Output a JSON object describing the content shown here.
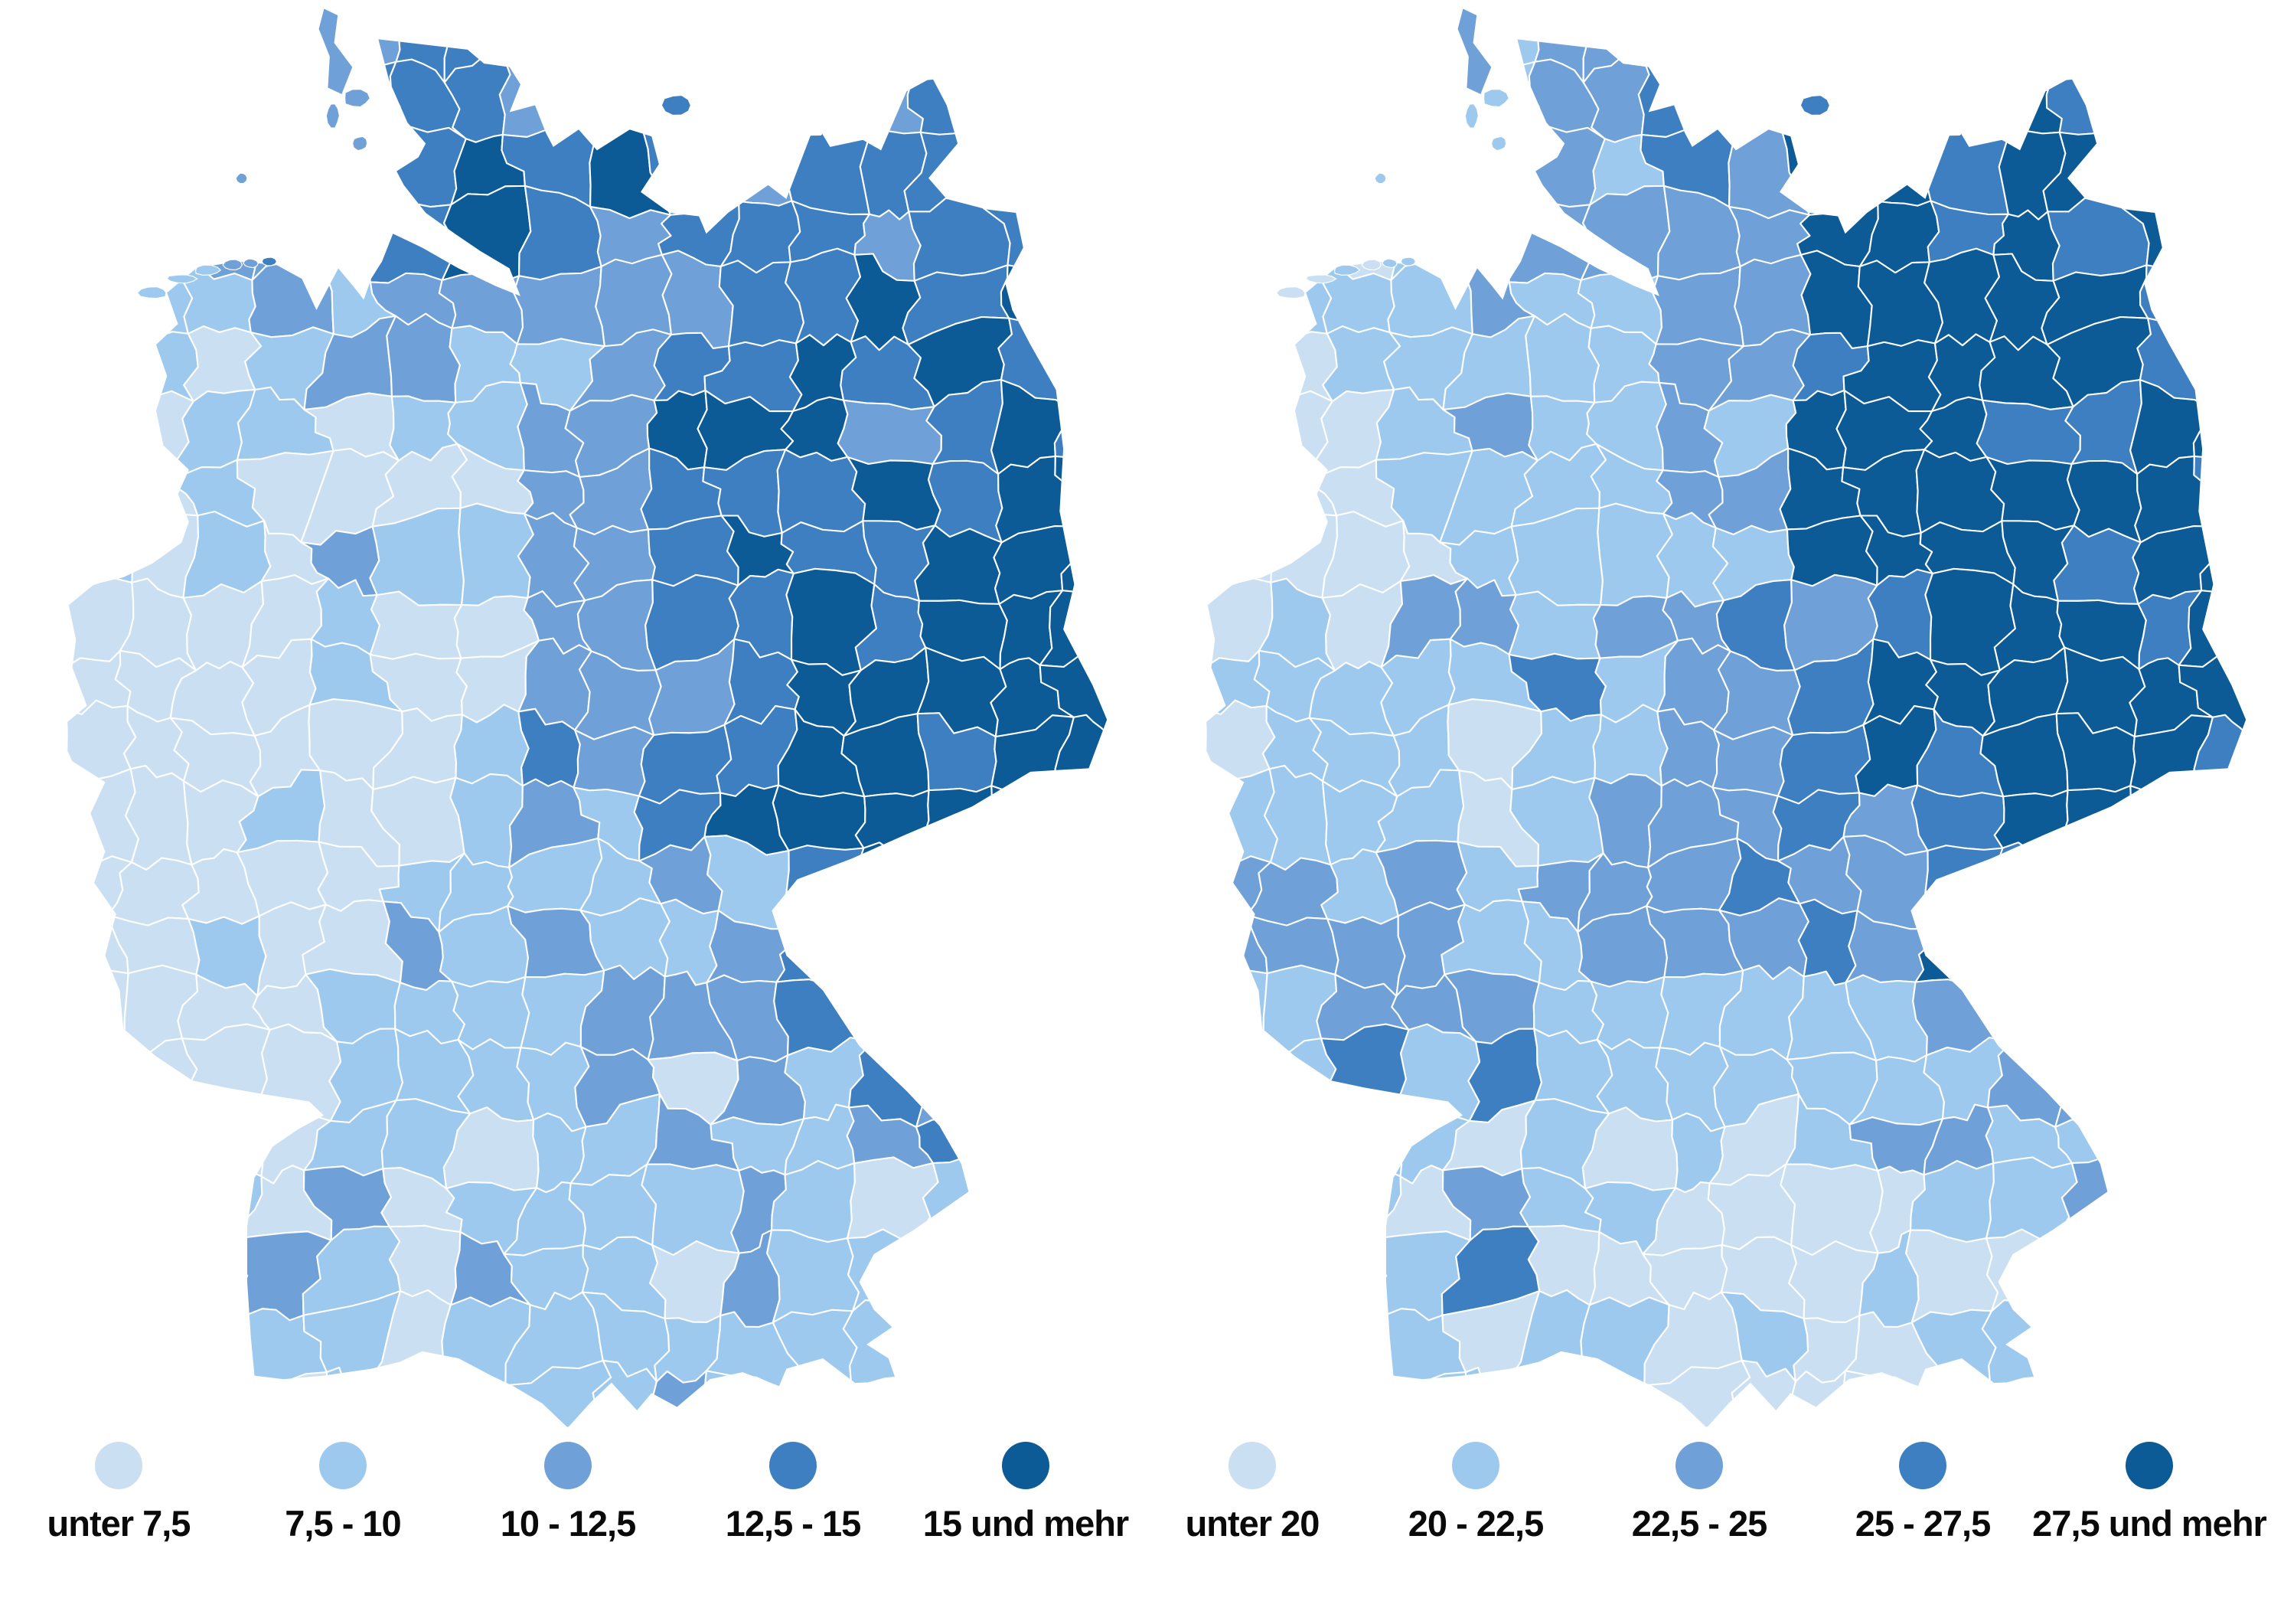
{
  "chart_data": {
    "type": "choropleth-map-pair",
    "region": "Germany, districts (Kreise)",
    "background": "#ffffff",
    "boundary_color": "#ffffff",
    "palette": [
      "#cbdff3",
      "#9dc9ee",
      "#6fa1d8",
      "#3e7fc1",
      "#0c5a96"
    ],
    "maps": [
      {
        "id": "left",
        "legend": [
          {
            "label": "unter 7,5",
            "color": "#cbdff3"
          },
          {
            "label": "7,5 - 10",
            "color": "#9dc9ee"
          },
          {
            "label": "10 - 12,5",
            "color": "#6fa1d8"
          },
          {
            "label": "12,5 - 15",
            "color": "#3e7fc1"
          },
          {
            "label": "15 und mehr",
            "color": "#0c5a96"
          }
        ],
        "spatial_class_grid": {
          "cols": 9,
          "rows": 12,
          "values": [
            [
              2,
              3,
              3,
              4,
              4,
              4,
              4,
              4,
              4
            ],
            [
              3,
              3,
              3,
              4,
              4,
              4,
              4,
              4,
              4
            ],
            [
              3,
              3,
              2,
              3,
              3,
              4,
              4,
              4,
              4
            ],
            [
              2,
              2,
              2,
              2,
              3,
              4,
              4,
              4,
              4
            ],
            [
              1,
              2,
              2,
              2,
              3,
              4,
              4,
              5,
              5
            ],
            [
              1,
              1,
              2,
              2,
              3,
              4,
              5,
              5,
              5
            ],
            [
              1,
              1,
              1,
              2,
              3,
              4,
              5,
              5,
              5
            ],
            [
              1,
              1,
              1,
              2,
              2,
              3,
              4,
              5,
              5
            ],
            [
              1,
              1,
              2,
              2,
              2,
              3,
              3,
              4,
              4
            ],
            [
              1,
              1,
              2,
              2,
              2,
              2,
              2,
              3,
              3
            ],
            [
              1,
              2,
              2,
              2,
              2,
              2,
              2,
              2,
              2
            ],
            [
              1,
              2,
              2,
              2,
              2,
              2,
              2,
              2,
              2
            ]
          ]
        }
      },
      {
        "id": "right",
        "legend": [
          {
            "label": "unter 20",
            "color": "#cbdff3"
          },
          {
            "label": "20 - 22,5",
            "color": "#9dc9ee"
          },
          {
            "label": "22,5 - 25",
            "color": "#6fa1d8"
          },
          {
            "label": "25 - 27,5",
            "color": "#3e7fc1"
          },
          {
            "label": "27,5 und mehr",
            "color": "#0c5a96"
          }
        ],
        "spatial_class_grid": {
          "cols": 9,
          "rows": 12,
          "values": [
            [
              2,
              2,
              2,
              3,
              4,
              5,
              5,
              5,
              5
            ],
            [
              2,
              2,
              2,
              3,
              3,
              5,
              5,
              5,
              5
            ],
            [
              2,
              2,
              2,
              2,
              3,
              5,
              5,
              5,
              5
            ],
            [
              1,
              2,
              2,
              2,
              3,
              5,
              5,
              4,
              5
            ],
            [
              1,
              1,
              2,
              2,
              3,
              5,
              5,
              5,
              5
            ],
            [
              2,
              2,
              2,
              3,
              3,
              4,
              5,
              5,
              5
            ],
            [
              2,
              2,
              2,
              2,
              3,
              4,
              5,
              5,
              5
            ],
            [
              3,
              3,
              2,
              2,
              3,
              3,
              4,
              4,
              4
            ],
            [
              2,
              3,
              3,
              2,
              2,
              2,
              3,
              3,
              3
            ],
            [
              2,
              2,
              2,
              2,
              2,
              2,
              2,
              2,
              3
            ],
            [
              1,
              2,
              3,
              2,
              1,
              1,
              2,
              2,
              2
            ],
            [
              1,
              2,
              2,
              2,
              1,
              1,
              2,
              2,
              2
            ]
          ]
        }
      }
    ]
  }
}
